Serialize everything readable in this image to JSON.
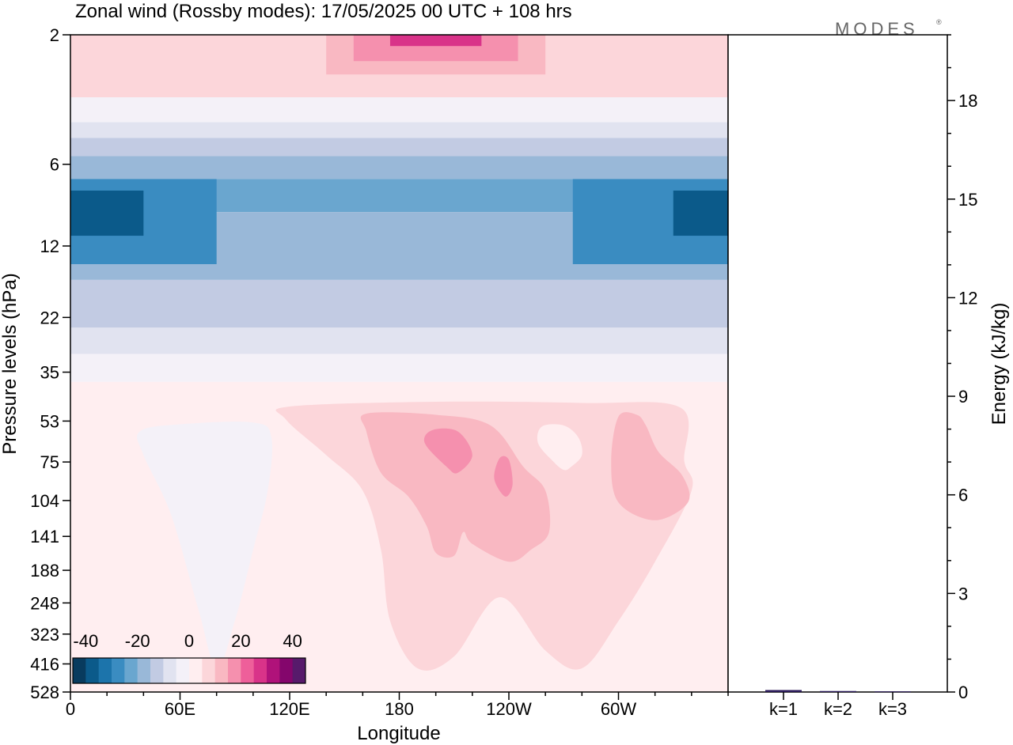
{
  "title": "Zonal wind (Rossby modes):  17/05/2025  00 UTC  + 108 hrs",
  "logo": "MODES",
  "logo_mark": "®",
  "chart_data": [
    {
      "type": "heatmap",
      "xlabel": "Longitude",
      "ylabel": "Pressure levels (hPa)",
      "x_ticks": [
        "0",
        "60E",
        "120E",
        "180",
        "120W",
        "60W"
      ],
      "x_tick_degrees": [
        0,
        60,
        120,
        180,
        240,
        300
      ],
      "xlim": [
        0,
        360
      ],
      "y_ticks": [
        "2",
        "6",
        "12",
        "22",
        "35",
        "53",
        "75",
        "104",
        "141",
        "188",
        "248",
        "323",
        "416",
        "528"
      ],
      "y_scale": "log",
      "colorbar": {
        "tick_labels": [
          "-40",
          "-20",
          "0",
          "20",
          "40"
        ],
        "tick_values": [
          -40,
          -20,
          0,
          20,
          40
        ],
        "levels": [
          -45,
          -40,
          -35,
          -30,
          -25,
          -20,
          -15,
          -10,
          -5,
          0,
          5,
          10,
          15,
          20,
          25,
          30,
          35,
          40,
          45
        ],
        "colors": [
          "#083b5e",
          "#0b5a8a",
          "#1c74ab",
          "#3a8cc1",
          "#6aa6cf",
          "#99b8d8",
          "#c2cbe3",
          "#e1e3f0",
          "#f4f1f8",
          "#ffeef0",
          "#fcd6da",
          "#f9b8c2",
          "#f590ae",
          "#ee5f9a",
          "#d93389",
          "#b0127a",
          "#84066c",
          "#571a6b"
        ]
      },
      "layers": [
        {
          "level": 0,
          "p_top": 2,
          "p_bottom": 3.4,
          "lon_start": 0,
          "lon_end": 360,
          "value": 5
        },
        {
          "level": 0,
          "p_top": 2,
          "p_bottom": 2.8,
          "lon_start": 140,
          "lon_end": 260,
          "value": 10
        },
        {
          "level": 0,
          "p_top": 2,
          "p_bottom": 2.5,
          "lon_start": 155,
          "lon_end": 245,
          "value": 15
        },
        {
          "level": 0,
          "p_top": 2,
          "p_bottom": 2.2,
          "lon_start": 175,
          "lon_end": 225,
          "value": 25
        },
        {
          "level": 0,
          "p_top": 3.4,
          "p_bottom": 4.2,
          "lon_start": 0,
          "lon_end": 360,
          "value": -5
        },
        {
          "level": 0,
          "p_top": 4.2,
          "p_bottom": 4.8,
          "lon_start": 0,
          "lon_end": 360,
          "value": -10
        },
        {
          "level": 0,
          "p_top": 4.8,
          "p_bottom": 5.6,
          "lon_start": 0,
          "lon_end": 360,
          "value": -15
        },
        {
          "level": 0,
          "p_top": 5.6,
          "p_bottom": 6.8,
          "lon_start": 0,
          "lon_end": 360,
          "value": -20
        },
        {
          "level": 0,
          "p_top": 6.8,
          "p_bottom": 9,
          "lon_start": 0,
          "lon_end": 360,
          "value": -25
        },
        {
          "level": 0,
          "p_top": 9,
          "p_bottom": 16,
          "lon_start": 0,
          "lon_end": 360,
          "value": -20
        },
        {
          "level": 0,
          "p_top": 16,
          "p_bottom": 24,
          "lon_start": 0,
          "lon_end": 360,
          "value": -15
        },
        {
          "level": 0,
          "p_top": 24,
          "p_bottom": 30,
          "lon_start": 0,
          "lon_end": 360,
          "value": -10
        },
        {
          "level": 0,
          "p_top": 30,
          "p_bottom": 38,
          "lon_start": 0,
          "lon_end": 360,
          "value": -5
        },
        {
          "level": 0,
          "p_top": 38,
          "p_bottom": 528,
          "lon_start": 0,
          "lon_end": 360,
          "value": 2
        },
        {
          "level": 0,
          "p_top": 6.8,
          "p_bottom": 14,
          "lon_start": 0,
          "lon_end": 80,
          "value": -30
        },
        {
          "level": 0,
          "p_top": 7.5,
          "p_bottom": 11,
          "lon_start": 0,
          "lon_end": 40,
          "value": -40
        },
        {
          "level": 0,
          "p_top": 6.8,
          "p_bottom": 14,
          "lon_start": 275,
          "lon_end": 360,
          "value": -30
        },
        {
          "level": 0,
          "p_top": 7.5,
          "p_bottom": 11,
          "lon_start": 330,
          "lon_end": 360,
          "value": -40
        }
      ],
      "blobs": [
        {
          "value": 5,
          "points": [
            [
              120,
              58
            ],
            [
              200,
              50
            ],
            [
              280,
              52
            ],
            [
              334,
              60
            ],
            [
              336,
              150
            ],
            [
              340,
              200
            ],
            [
              320,
              320
            ],
            [
              300,
              420
            ],
            [
              280,
              500
            ],
            [
              260,
              470
            ],
            [
              235,
              380
            ],
            [
              210,
              480
            ],
            [
              190,
              500
            ],
            [
              175,
              420
            ],
            [
              170,
              300
            ],
            [
              160,
              200
            ],
            [
              140,
              140
            ],
            [
              118,
              80
            ]
          ]
        },
        {
          "value": -2,
          "points": [
            [
              38,
              100
            ],
            [
              60,
              88
            ],
            [
              100,
              85
            ],
            [
              110,
              110
            ],
            [
              108,
              200
            ],
            [
              100,
              300
            ],
            [
              90,
              420
            ],
            [
              80,
              500
            ],
            [
              70,
              400
            ],
            [
              55,
              240
            ],
            [
              40,
              140
            ]
          ]
        },
        {
          "value": -5,
          "points": [
            [
              65,
              100
            ],
            [
              80,
              98
            ],
            [
              95,
              110
            ],
            [
              102,
              180
            ],
            [
              95,
              230
            ],
            [
              88,
              250
            ],
            [
              80,
              230
            ],
            [
              70,
              150
            ],
            [
              64,
              115
            ]
          ]
        },
        {
          "value": 10,
          "points": [
            [
              162,
              70
            ],
            [
              200,
              72
            ],
            [
              230,
              90
            ],
            [
              248,
              160
            ],
            [
              260,
              200
            ],
            [
              262,
              270
            ],
            [
              252,
              300
            ],
            [
              240,
              320
            ],
            [
              220,
              290
            ],
            [
              215,
              270
            ],
            [
              210,
              310
            ],
            [
              200,
              305
            ],
            [
              195,
              260
            ],
            [
              185,
              210
            ],
            [
              170,
              170
            ],
            [
              162,
              100
            ]
          ]
        },
        {
          "value": 10,
          "points": [
            [
              300,
              75
            ],
            [
              310,
              72
            ],
            [
              315,
              90
            ],
            [
              322,
              135
            ],
            [
              335,
              175
            ],
            [
              338,
              220
            ],
            [
              320,
              250
            ],
            [
              300,
              220
            ],
            [
              296,
              150
            ]
          ]
        },
        {
          "value": 2,
          "points": [
            [
              258,
              92
            ],
            [
              270,
              90
            ],
            [
              278,
              110
            ],
            [
              280,
              140
            ],
            [
              274,
              160
            ],
            [
              270,
              165
            ],
            [
              264,
              150
            ],
            [
              256,
              120
            ]
          ]
        },
        {
          "value": 15,
          "points": [
            [
              198,
              98
            ],
            [
              212,
              100
            ],
            [
              220,
              140
            ],
            [
              212,
              170
            ],
            [
              206,
              160
            ],
            [
              194,
              120
            ]
          ]
        },
        {
          "value": 15,
          "points": [
            [
              235,
              145
            ],
            [
              240,
              148
            ],
            [
              242,
              190
            ],
            [
              238,
              210
            ],
            [
              232,
              180
            ]
          ]
        }
      ]
    },
    {
      "type": "bar",
      "ylabel": "Energy (kJ/kg)",
      "categories": [
        "k=1",
        "k=2",
        "k=3"
      ],
      "values": [
        0.06,
        0.03,
        0.02
      ],
      "y_ticks": [
        0,
        3,
        6,
        9,
        12,
        15,
        18
      ],
      "ylim": [
        0,
        20
      ]
    }
  ]
}
